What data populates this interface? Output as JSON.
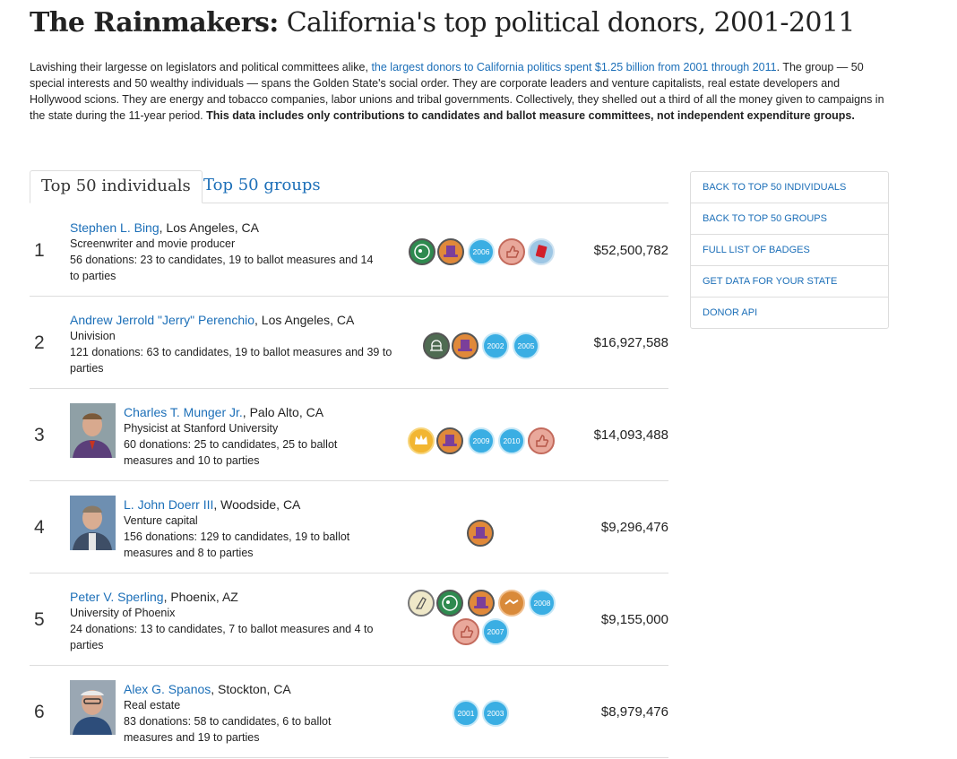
{
  "header": {
    "title_bold": "The Rainmakers:",
    "title_rest": " California's top political donors, 2001-2011"
  },
  "intro": {
    "part1": "Lavishing their largesse on legislators and political committees alike, ",
    "link": "the largest donors to California politics spent $1.25 billion from 2001 through 2011",
    "part2": ". The group — 50 special interests and 50 wealthy individuals — spans the Golden State's social order. They are corporate leaders and venture capitalists, real estate developers and Hollywood scions. They are energy and tobacco companies, labor unions and tribal governments. Collectively, they shelled out a third of all the money given to campaigns in the state during the 11-year period. ",
    "bold": "This data includes only contributions to candidates and ballot measure committees, not independent expenditure groups."
  },
  "tabs": {
    "individuals": "Top 50 individuals",
    "groups": "Top 50 groups"
  },
  "donors": [
    {
      "rank": "1",
      "name": "Stephen L. Bing",
      "location": ", Los Angeles, CA",
      "occupation": "Screenwriter and movie producer",
      "donations": "56 donations: 23 to candidates, 19 to ballot measures and 14 to parties",
      "amount": "$52,500,782",
      "years": [
        "2006"
      ]
    },
    {
      "rank": "2",
      "name": "Andrew Jerrold \"Jerry\" Perenchio",
      "location": ", Los Angeles, CA",
      "occupation": "Univision",
      "donations": "121 donations: 63 to candidates, 19 to ballot measures and 39 to parties",
      "amount": "$16,927,588",
      "years": [
        "2002",
        "2005"
      ]
    },
    {
      "rank": "3",
      "name": "Charles T. Munger Jr.",
      "location": ", Palo Alto, CA",
      "occupation": "Physicist at Stanford University",
      "donations": "60 donations: 25 to candidates, 25 to ballot measures and 10 to parties",
      "amount": "$14,093,488",
      "years": [
        "2009",
        "2010"
      ]
    },
    {
      "rank": "4",
      "name": "L. John Doerr III",
      "location": ", Woodside, CA",
      "occupation": "Venture capital",
      "donations": "156 donations: 129 to candidates, 19 to ballot measures and 8 to parties",
      "amount": "$9,296,476",
      "years": []
    },
    {
      "rank": "5",
      "name": "Peter V. Sperling",
      "location": ", Phoenix, AZ",
      "occupation": "University of Phoenix",
      "donations": "24 donations: 13 to candidates, 7 to ballot measures and 4 to parties",
      "amount": "$9,155,000",
      "years": [
        "2008",
        "2007"
      ]
    },
    {
      "rank": "6",
      "name": "Alex G. Spanos",
      "location": ", Stockton, CA",
      "occupation": "Real estate",
      "donations": "83 donations: 58 to candidates, 6 to ballot measures and 19 to parties",
      "amount": "$8,979,476",
      "years": [
        "2001",
        "2003"
      ]
    }
  ],
  "badge_icons": {
    "row1": [
      "donkey-elephant-icon",
      "top-hat-icon",
      "thumbs-up-icon",
      "red-card-icon"
    ],
    "row2": [
      "capitol-dome-icon",
      "top-hat-icon"
    ],
    "row3": [
      "crown-icon",
      "top-hat-icon",
      "thumbs-up-icon"
    ],
    "row4": [
      "top-hat-icon"
    ],
    "row5": [
      "praying-hands-icon",
      "donkey-elephant-icon",
      "top-hat-icon",
      "handshake-icon",
      "thumbs-up-icon"
    ],
    "row6": []
  },
  "sidebar": {
    "items": [
      "BACK TO TOP 50 INDIVIDUALS",
      "BACK TO TOP 50 GROUPS",
      "FULL LIST OF BADGES",
      "GET DATA FOR YOUR STATE",
      "DONOR API"
    ]
  },
  "colors": {
    "link": "#1c6fb8",
    "year_badge": "#3aaee3",
    "divider": "#dddddd"
  }
}
